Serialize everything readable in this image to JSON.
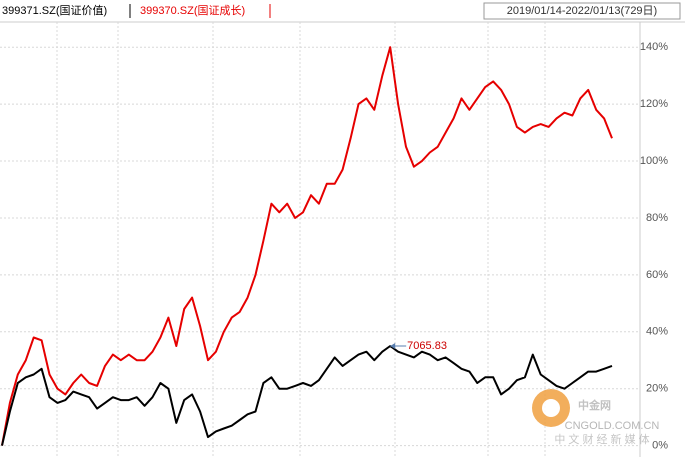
{
  "chart_data": {
    "type": "line",
    "range": "2019/01/14-2022/01/13(729日)",
    "series": [
      {
        "name": "399371.SZ(国证价值)",
        "color": "#000000",
        "values": [
          0,
          12,
          22,
          24,
          25,
          27,
          17,
          15,
          16,
          19,
          18,
          17,
          13,
          15,
          17,
          16,
          16,
          17,
          14,
          17,
          22,
          20,
          8,
          16,
          18,
          12,
          3,
          5,
          6,
          7,
          9,
          11,
          12,
          22,
          24,
          20,
          20,
          21,
          22,
          21,
          23,
          27,
          31,
          28,
          30,
          32,
          33,
          30,
          33,
          35,
          33,
          32,
          31,
          33,
          32,
          30,
          31,
          29,
          27,
          26,
          22,
          24,
          24,
          18,
          20,
          23,
          24,
          32,
          25,
          23,
          21,
          20,
          22,
          24,
          26,
          26,
          27,
          28
        ]
      },
      {
        "name": "399370.SZ(国证成长)",
        "color": "#e60000",
        "values": [
          0,
          15,
          25,
          30,
          38,
          37,
          25,
          20,
          18,
          22,
          25,
          22,
          21,
          28,
          32,
          30,
          32,
          30,
          30,
          33,
          38,
          45,
          35,
          48,
          52,
          42,
          30,
          33,
          40,
          45,
          47,
          52,
          60,
          72,
          85,
          82,
          85,
          80,
          82,
          88,
          85,
          92,
          92,
          97,
          108,
          120,
          122,
          118,
          130,
          140,
          120,
          105,
          98,
          100,
          103,
          105,
          110,
          115,
          122,
          118,
          122,
          126,
          128,
          125,
          120,
          112,
          110,
          112,
          113,
          112,
          115,
          117,
          116,
          122,
          125,
          118,
          115,
          108
        ]
      }
    ],
    "annotation": {
      "text": "7065.83",
      "series": 0,
      "index": 49
    },
    "ylim": [
      -4,
      145
    ],
    "yticks": [
      {
        "value": 0,
        "label": "0%"
      },
      {
        "value": 20,
        "label": "20%"
      },
      {
        "value": 40,
        "label": "40%"
      },
      {
        "value": 60,
        "label": "60%"
      },
      {
        "value": 80,
        "label": "80%"
      },
      {
        "value": 100,
        "label": "100%"
      },
      {
        "value": 120,
        "label": "120%"
      },
      {
        "value": 140,
        "label": "140%"
      }
    ],
    "grid": true,
    "watermark": {
      "brand": "中金网",
      "site": "CNGOLD.COM.CN",
      "slogan": "中 文 财 经 新 媒 体"
    }
  }
}
